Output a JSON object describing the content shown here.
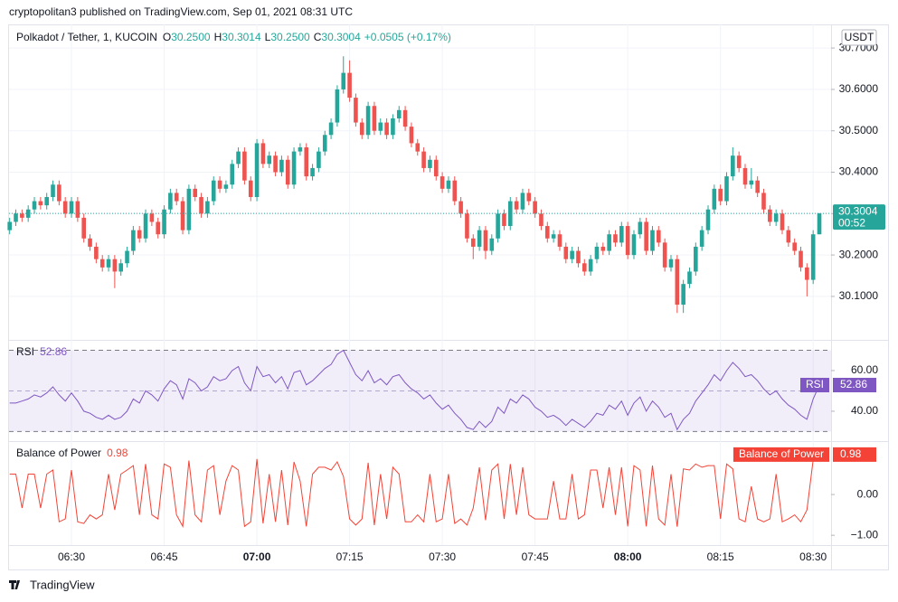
{
  "page_header": "cryptopolitan3 published on TradingView.com, Sep 01, 2021 08:31 UTC",
  "brand": "TradingView",
  "chart_data": [
    {
      "type": "candlestick",
      "title": "Polkadot / Tether, 1, KUCOIN",
      "axis_label": "USDT",
      "countdown": "00:52",
      "legend_keys": [
        "O",
        "H",
        "L",
        "C"
      ],
      "legend_values": [
        "30.2500",
        "30.3014",
        "30.2500",
        "30.3004"
      ],
      "change": "+0.0505 (+0.17%)",
      "up_color": "#26a69a",
      "down_color": "#ef5350",
      "x": [
        20,
        21,
        22,
        23,
        24,
        25,
        26,
        27,
        28,
        29,
        30,
        31,
        32,
        33,
        34,
        35,
        36,
        37,
        38,
        39,
        40,
        41,
        42,
        43,
        44,
        45,
        46,
        47,
        48,
        49,
        50,
        51,
        52,
        53,
        54,
        55,
        56,
        57,
        58,
        59,
        60,
        61,
        62,
        63,
        64,
        65,
        66,
        67,
        68,
        69,
        70,
        71,
        72,
        73,
        74,
        75,
        76,
        77,
        78,
        79,
        80,
        81,
        82,
        83,
        84,
        85,
        86,
        87,
        88,
        89,
        90,
        91,
        92,
        93,
        94,
        95,
        96,
        97,
        98,
        99,
        100,
        101,
        102,
        103,
        104,
        105,
        106,
        107,
        108,
        109,
        110,
        111,
        112,
        113,
        114,
        115,
        116,
        117,
        118,
        119,
        120,
        121,
        122,
        123,
        124,
        125,
        126,
        127,
        128,
        129,
        130,
        131,
        132,
        133,
        134,
        135,
        136,
        137,
        138,
        139,
        140,
        141,
        142,
        143,
        144,
        145,
        146,
        147,
        148,
        149,
        150,
        151
      ],
      "open": [
        30.26,
        30.28,
        30.3,
        30.29,
        30.31,
        30.33,
        30.32,
        30.34,
        30.37,
        30.33,
        30.3,
        30.33,
        30.29,
        30.24,
        30.22,
        30.19,
        30.17,
        30.19,
        30.16,
        30.18,
        30.21,
        30.26,
        30.24,
        30.3,
        30.28,
        30.25,
        30.31,
        30.35,
        30.33,
        30.26,
        30.36,
        30.34,
        30.3,
        30.33,
        30.38,
        30.36,
        30.37,
        30.42,
        30.45,
        30.38,
        30.34,
        30.47,
        30.42,
        30.44,
        30.4,
        30.43,
        30.37,
        30.45,
        30.46,
        30.39,
        30.41,
        30.45,
        30.49,
        30.52,
        30.6,
        30.64,
        30.58,
        30.52,
        30.49,
        30.56,
        30.5,
        30.52,
        30.49,
        30.53,
        30.55,
        30.51,
        30.47,
        30.45,
        30.41,
        30.43,
        30.39,
        30.36,
        30.38,
        30.33,
        30.3,
        30.24,
        30.22,
        30.26,
        30.21,
        30.24,
        30.3,
        30.27,
        30.33,
        30.31,
        30.35,
        30.33,
        30.3,
        30.27,
        30.24,
        30.25,
        30.22,
        30.19,
        30.21,
        30.18,
        30.16,
        30.19,
        30.22,
        30.21,
        30.25,
        30.23,
        30.27,
        30.2,
        30.25,
        30.28,
        30.21,
        30.26,
        30.23,
        30.17,
        30.19,
        30.08,
        30.13,
        30.16,
        30.22,
        30.26,
        30.31,
        30.36,
        30.33,
        30.39,
        30.44,
        30.41,
        30.37,
        30.38,
        30.35,
        30.31,
        30.28,
        30.3,
        30.26,
        30.23,
        30.21,
        30.17,
        30.14,
        30.25
      ],
      "high": [
        30.29,
        30.31,
        30.31,
        30.32,
        30.34,
        30.34,
        30.35,
        30.38,
        30.38,
        30.34,
        30.34,
        30.34,
        30.3,
        30.25,
        30.23,
        30.2,
        30.2,
        30.2,
        30.19,
        30.22,
        30.27,
        30.27,
        30.31,
        30.31,
        30.29,
        30.32,
        30.36,
        30.36,
        30.34,
        30.37,
        30.37,
        30.35,
        30.34,
        30.39,
        30.39,
        30.38,
        30.43,
        30.46,
        30.46,
        30.39,
        30.48,
        30.48,
        30.45,
        30.45,
        30.44,
        30.44,
        30.46,
        30.47,
        30.47,
        30.42,
        30.46,
        30.5,
        30.53,
        30.61,
        30.68,
        30.67,
        30.59,
        30.53,
        30.57,
        30.57,
        30.53,
        30.53,
        30.54,
        30.56,
        30.56,
        30.52,
        30.48,
        30.46,
        30.44,
        30.44,
        30.4,
        30.39,
        30.39,
        30.34,
        30.31,
        30.25,
        30.27,
        30.27,
        30.25,
        30.31,
        30.31,
        30.34,
        30.34,
        30.36,
        30.36,
        30.34,
        30.31,
        30.28,
        30.26,
        30.26,
        30.23,
        30.22,
        30.22,
        30.19,
        30.2,
        30.23,
        30.23,
        30.26,
        30.26,
        30.28,
        30.28,
        30.26,
        30.29,
        30.29,
        30.27,
        30.27,
        30.24,
        30.2,
        30.2,
        30.14,
        30.17,
        30.23,
        30.27,
        30.32,
        30.37,
        30.37,
        30.4,
        30.46,
        30.45,
        30.42,
        30.41,
        30.39,
        30.36,
        30.32,
        30.31,
        30.31,
        30.27,
        30.24,
        30.22,
        30.18,
        30.26,
        30.3014
      ],
      "low": [
        30.25,
        30.27,
        30.28,
        30.28,
        30.3,
        30.31,
        30.31,
        30.33,
        30.32,
        30.29,
        30.29,
        30.28,
        30.23,
        30.21,
        30.18,
        30.16,
        30.16,
        30.12,
        30.15,
        30.17,
        30.2,
        30.23,
        30.23,
        30.27,
        30.24,
        30.24,
        30.3,
        30.32,
        30.25,
        30.25,
        30.33,
        30.29,
        30.29,
        30.32,
        30.35,
        30.35,
        30.36,
        30.41,
        30.37,
        30.33,
        30.33,
        30.41,
        30.41,
        30.39,
        30.39,
        30.36,
        30.36,
        30.44,
        30.38,
        30.38,
        30.4,
        30.44,
        30.48,
        30.51,
        30.59,
        30.57,
        30.51,
        30.48,
        30.48,
        30.49,
        30.49,
        30.48,
        30.48,
        30.52,
        30.5,
        30.46,
        30.44,
        30.4,
        30.4,
        30.38,
        30.35,
        30.35,
        30.32,
        30.29,
        30.23,
        30.19,
        30.21,
        30.19,
        30.2,
        30.23,
        30.26,
        30.26,
        30.3,
        30.3,
        30.32,
        30.29,
        30.26,
        30.23,
        30.23,
        30.21,
        30.18,
        30.18,
        30.17,
        30.15,
        30.15,
        30.18,
        30.2,
        30.2,
        30.22,
        30.22,
        30.19,
        30.19,
        30.24,
        30.2,
        30.2,
        30.22,
        30.16,
        30.16,
        30.06,
        30.06,
        30.12,
        30.15,
        30.21,
        30.25,
        30.3,
        30.32,
        30.32,
        30.38,
        30.4,
        30.36,
        30.36,
        30.34,
        30.3,
        30.27,
        30.27,
        30.25,
        30.22,
        30.2,
        30.16,
        30.1,
        30.13,
        30.25
      ],
      "close": [
        30.28,
        30.3,
        30.29,
        30.31,
        30.33,
        30.32,
        30.34,
        30.37,
        30.33,
        30.3,
        30.33,
        30.29,
        30.24,
        30.22,
        30.19,
        30.17,
        30.19,
        30.16,
        30.18,
        30.21,
        30.26,
        30.24,
        30.3,
        30.28,
        30.25,
        30.31,
        30.35,
        30.33,
        30.26,
        30.36,
        30.34,
        30.3,
        30.33,
        30.38,
        30.36,
        30.37,
        30.42,
        30.45,
        30.38,
        30.34,
        30.47,
        30.42,
        30.44,
        30.4,
        30.43,
        30.37,
        30.45,
        30.46,
        30.39,
        30.41,
        30.45,
        30.49,
        30.52,
        30.6,
        30.64,
        30.58,
        30.52,
        30.49,
        30.56,
        30.5,
        30.52,
        30.49,
        30.53,
        30.55,
        30.51,
        30.47,
        30.45,
        30.41,
        30.43,
        30.39,
        30.36,
        30.38,
        30.33,
        30.3,
        30.24,
        30.22,
        30.26,
        30.21,
        30.24,
        30.3,
        30.27,
        30.33,
        30.31,
        30.35,
        30.33,
        30.3,
        30.27,
        30.24,
        30.25,
        30.22,
        30.19,
        30.21,
        30.18,
        30.16,
        30.19,
        30.22,
        30.21,
        30.25,
        30.23,
        30.27,
        30.2,
        30.25,
        30.28,
        30.21,
        30.26,
        30.23,
        30.17,
        30.19,
        30.08,
        30.13,
        30.16,
        30.22,
        30.26,
        30.31,
        30.36,
        30.33,
        30.39,
        30.44,
        30.41,
        30.37,
        30.38,
        30.35,
        30.31,
        30.28,
        30.3,
        30.26,
        30.23,
        30.21,
        30.17,
        30.14,
        30.25,
        30.3004
      ],
      "xlim": [
        19.9,
        152.9
      ],
      "xticks": [
        {
          "value": 30,
          "label": "06:30"
        },
        {
          "value": 45,
          "label": "06:45"
        },
        {
          "value": 60,
          "label": "07:00"
        },
        {
          "value": 75,
          "label": "07:15"
        },
        {
          "value": 90,
          "label": "07:30"
        },
        {
          "value": 105,
          "label": "07:45"
        },
        {
          "value": 120,
          "label": "08:00"
        },
        {
          "value": 135,
          "label": "08:15"
        },
        {
          "value": 150,
          "label": "08:30"
        }
      ],
      "ylim": [
        29.995,
        30.757
      ],
      "yticks": [
        {
          "value": 30.1,
          "label": "30.1000"
        },
        {
          "value": 30.2,
          "label": "30.2000"
        },
        {
          "value": 30.3,
          "label": "30.3000"
        },
        {
          "value": 30.4,
          "label": "30.4000"
        },
        {
          "value": 30.5,
          "label": "30.5000"
        },
        {
          "value": 30.6,
          "label": "30.6000"
        },
        {
          "value": 30.7,
          "label": "30.7000"
        }
      ],
      "grid": true
    },
    {
      "type": "line",
      "title": "RSI",
      "levels": [
        70,
        50,
        30
      ],
      "fill_between": [
        70,
        30
      ],
      "series": [
        {
          "name": "RSI",
          "color": "#7e57c2",
          "values": [
            44,
            44,
            45,
            46,
            48,
            47,
            49,
            52,
            48,
            45,
            49,
            45,
            40,
            39,
            37,
            36,
            38,
            36,
            37,
            40,
            46,
            44,
            50,
            48,
            45,
            51,
            55,
            53,
            46,
            56,
            54,
            50,
            52,
            57,
            55,
            56,
            60,
            62,
            54,
            50,
            62,
            57,
            58,
            54,
            57,
            51,
            59,
            60,
            53,
            55,
            58,
            61,
            63,
            68,
            70,
            64,
            58,
            55,
            60,
            54,
            56,
            53,
            57,
            58,
            54,
            51,
            49,
            46,
            48,
            44,
            41,
            43,
            39,
            36,
            32,
            31,
            35,
            32,
            35,
            42,
            39,
            46,
            44,
            48,
            46,
            42,
            40,
            37,
            38,
            36,
            33,
            36,
            34,
            32,
            35,
            39,
            38,
            43,
            41,
            45,
            38,
            44,
            47,
            40,
            45,
            42,
            37,
            39,
            31,
            36,
            39,
            45,
            49,
            53,
            58,
            55,
            60,
            64,
            61,
            57,
            58,
            55,
            51,
            48,
            50,
            46,
            43,
            41,
            38,
            36,
            46,
            52.86
          ]
        }
      ],
      "ylim": [
        25.3,
        75.1
      ],
      "yticks": [
        {
          "value": 40,
          "label": "40.00"
        },
        {
          "value": 60,
          "label": "60.00"
        }
      ]
    },
    {
      "type": "line",
      "title": "Balance of Power",
      "series": [
        {
          "name": "Balance of Power",
          "color": "#f44336",
          "values": [
            0.5,
            0.5,
            -0.33,
            0.5,
            0.5,
            -0.33,
            0.5,
            0.6,
            -0.67,
            -0.6,
            0.6,
            -0.67,
            -0.71,
            -0.5,
            -0.6,
            -0.5,
            0.5,
            -0.38,
            0.5,
            0.6,
            0.71,
            -0.5,
            0.75,
            -0.5,
            -0.6,
            0.75,
            0.67,
            -0.5,
            -0.78,
            0.83,
            -0.5,
            -0.67,
            0.6,
            0.71,
            -0.5,
            0.33,
            0.71,
            0.6,
            -0.78,
            -0.67,
            0.87,
            -0.71,
            0.5,
            -0.67,
            0.6,
            -0.75,
            0.8,
            0.33,
            -0.78,
            0.5,
            0.67,
            0.67,
            0.6,
            0.8,
            0.44,
            -0.6,
            -0.75,
            -0.6,
            0.78,
            -0.75,
            0.5,
            -0.6,
            0.67,
            0.5,
            -0.67,
            -0.67,
            -0.5,
            -0.67,
            0.5,
            -0.67,
            -0.6,
            0.5,
            -0.71,
            -0.6,
            -0.75,
            -0.33,
            0.67,
            -0.63,
            0.6,
            0.75,
            -0.6,
            0.75,
            -0.5,
            0.67,
            -0.5,
            -0.6,
            -0.6,
            -0.6,
            0.33,
            -0.6,
            -0.6,
            0.5,
            -0.6,
            -0.5,
            0.6,
            0.6,
            -0.33,
            0.67,
            -0.5,
            0.67,
            -0.78,
            0.71,
            0.6,
            -0.78,
            0.71,
            -0.6,
            -0.75,
            0.5,
            -0.79,
            0.63,
            0.6,
            0.75,
            0.67,
            0.71,
            0.71,
            -0.6,
            0.75,
            0.63,
            -0.6,
            -0.67,
            0.2,
            -0.6,
            -0.67,
            -0.6,
            0.5,
            -0.67,
            -0.6,
            -0.5,
            -0.67,
            -0.38,
            0.85,
            0.98
          ]
        }
      ],
      "ylim": [
        -1.24,
        1.31
      ],
      "yticks": [
        {
          "value": 0,
          "label": "0.00"
        },
        {
          "value": -1,
          "label": "−1.00"
        }
      ]
    }
  ]
}
